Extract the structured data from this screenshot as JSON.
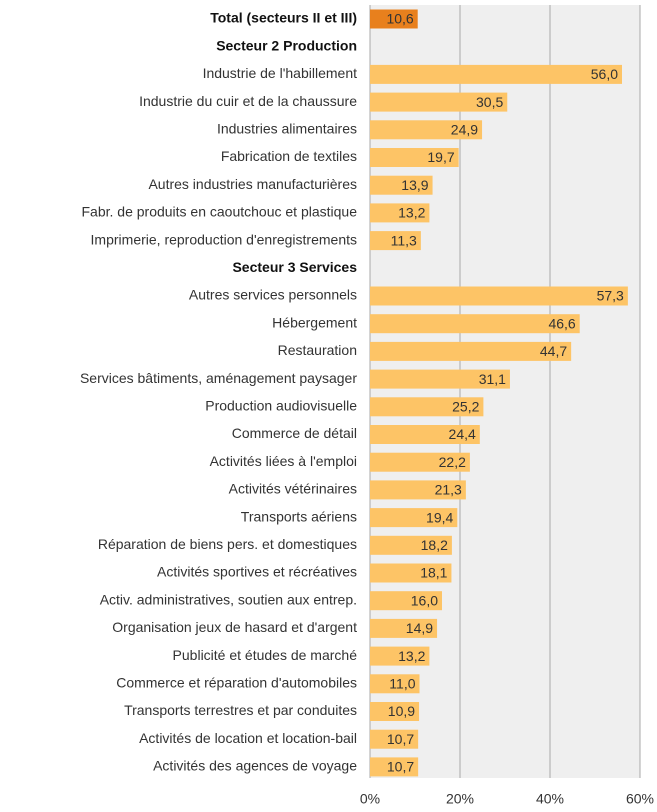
{
  "chart_data": {
    "type": "bar",
    "total": {
      "name": "Total (secteurs II et III)",
      "value": 10.6,
      "value_label": "10,6",
      "color": "#e8801d"
    },
    "color": "#fdc466",
    "groups": [
      {
        "name": "Secteur 2 Production",
        "categories": [
          "Industrie de l'habillement",
          "Industrie du cuir et de la chaussure",
          "Industries alimentaires",
          "Fabrication de textiles",
          "Autres industries manufacturières",
          "Fabr. de produits en caoutchouc et plastique",
          "Imprimerie, reproduction d'enregistrements"
        ],
        "values": [
          56.0,
          30.5,
          24.9,
          19.7,
          13.9,
          13.2,
          11.3
        ],
        "value_labels": [
          "56,0",
          "30,5",
          "24,9",
          "19,7",
          "13,9",
          "13,2",
          "11,3"
        ]
      },
      {
        "name": "Secteur 3 Services",
        "categories": [
          "Autres services personnels",
          "Hébergement",
          "Restauration",
          "Services bâtiments, aménagement paysager",
          "Production audiovisuelle",
          "Commerce de détail",
          "Activités liées à l'emploi",
          "Activités vétérinaires",
          "Transports aériens",
          "Réparation de biens pers. et domestiques",
          "Activités sportives et récréatives",
          "Activ. administratives, soutien aux entrep.",
          "Organisation jeux de hasard et d'argent",
          "Publicité et études de marché",
          "Commerce et réparation d'automobiles",
          "Transports terrestres et par conduites",
          "Activités de location et location-bail",
          "Activités des agences de voyage"
        ],
        "values": [
          57.3,
          46.6,
          44.7,
          31.1,
          25.2,
          24.4,
          22.2,
          21.3,
          19.4,
          18.2,
          18.1,
          16.0,
          14.9,
          13.2,
          11.0,
          10.9,
          10.7,
          10.7
        ],
        "value_labels": [
          "57,3",
          "46,6",
          "44,7",
          "31,1",
          "25,2",
          "24,4",
          "22,2",
          "21,3",
          "19,4",
          "18,2",
          "18,1",
          "16,0",
          "14,9",
          "13,2",
          "11,0",
          "10,9",
          "10,7",
          "10,7"
        ]
      }
    ],
    "xlim": [
      0,
      60
    ],
    "xticks": [
      {
        "value": 0,
        "label": "0%"
      },
      {
        "value": 20,
        "label": "20%"
      },
      {
        "value": 40,
        "label": "40%"
      },
      {
        "value": 60,
        "label": "60%"
      }
    ],
    "grid": true
  }
}
